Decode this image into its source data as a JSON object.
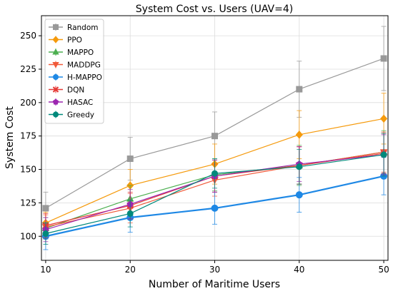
{
  "chart_data": {
    "type": "line",
    "title": "System Cost vs. Users (UAV=4)",
    "xlabel": "Number of Maritime Users",
    "ylabel": "System Cost",
    "x": [
      10,
      20,
      30,
      40,
      50
    ],
    "xticks": [
      "10",
      "20",
      "30",
      "40",
      "50"
    ],
    "yticks": [
      "100",
      "125",
      "150",
      "175",
      "200",
      "225",
      "250"
    ],
    "xlim": [
      9.5,
      50.5
    ],
    "ylim": [
      82,
      265
    ],
    "grid": true,
    "legend_position": "top-left",
    "series": [
      {
        "name": "Random",
        "color": "#999999",
        "marker": "square",
        "values": [
          121,
          158,
          175,
          210,
          233
        ],
        "err": [
          12,
          16,
          18,
          21,
          24
        ]
      },
      {
        "name": "PPO",
        "color": "#f59a0c",
        "marker": "diamond",
        "values": [
          110,
          138,
          154,
          176,
          188
        ],
        "err": [
          8,
          12,
          15,
          18,
          19
        ]
      },
      {
        "name": "MAPPO",
        "color": "#4caf50",
        "marker": "triangle-up",
        "values": [
          106,
          128,
          146,
          153,
          163
        ],
        "err": [
          8,
          10,
          12,
          15,
          16
        ]
      },
      {
        "name": "MADDPG",
        "color": "#f15a3a",
        "marker": "triangle-down",
        "values": [
          107,
          121,
          142,
          153,
          163
        ],
        "err": [
          9,
          11,
          12,
          14,
          15
        ]
      },
      {
        "name": "H-MAPPO",
        "color": "#1e88e5",
        "marker": "circle",
        "values": [
          100,
          114,
          121,
          131,
          145
        ],
        "err": [
          10,
          11,
          12,
          13,
          14
        ]
      },
      {
        "name": "DQN",
        "color": "#e53935",
        "marker": "x",
        "values": [
          108,
          123,
          145,
          153,
          162
        ],
        "err": [
          9,
          10,
          12,
          14,
          15
        ]
      },
      {
        "name": "HASAC",
        "color": "#9c27b0",
        "marker": "pentagon",
        "values": [
          105,
          124,
          145,
          154,
          161
        ],
        "err": [
          9,
          11,
          12,
          13,
          15
        ]
      },
      {
        "name": "Greedy",
        "color": "#00897b",
        "marker": "circle",
        "values": [
          102,
          117,
          147,
          152,
          161
        ],
        "err": [
          8,
          10,
          11,
          13,
          16
        ]
      }
    ]
  }
}
